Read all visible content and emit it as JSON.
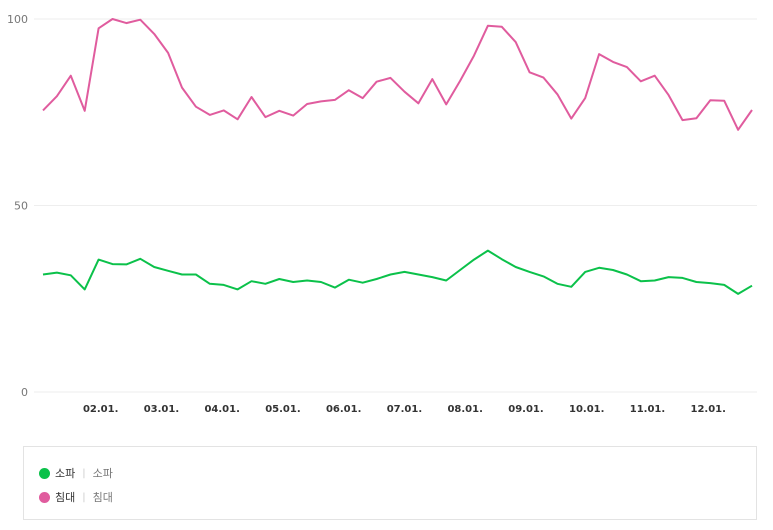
{
  "chart_data": {
    "type": "line",
    "ylim": [
      0,
      100
    ],
    "yticks": [
      0,
      50,
      100
    ],
    "x_tick_labels": [
      "02.01.",
      "03.01.",
      "04.01.",
      "05.01.",
      "06.01.",
      "07.01.",
      "08.01.",
      "09.01.",
      "10.01.",
      "11.01.",
      "12.01."
    ],
    "series": [
      {
        "name": "소파",
        "alias": "소파",
        "color": "#0bc14a",
        "values": [
          31.5,
          32,
          31.3,
          27.5,
          35.5,
          34.3,
          34.2,
          35.7,
          33.5,
          32.5,
          31.5,
          31.5,
          29,
          28.7,
          27.5,
          29.7,
          29,
          30.3,
          29.5,
          29.9,
          29.5,
          28,
          30.1,
          29.3,
          30.3,
          31.5,
          32.2,
          31.5,
          30.8,
          29.9,
          32.7,
          35.5,
          37.9,
          35.6,
          33.5,
          32.2,
          31,
          29,
          28.2,
          32.2,
          33.3,
          32.7,
          31.5,
          29.7,
          29.9,
          30.8,
          30.6,
          29.5,
          29.2,
          28.7,
          26.3,
          28.5
        ]
      },
      {
        "name": "침대",
        "alias": "침대",
        "color": "#e05c9e",
        "values": [
          75.5,
          79.3,
          84.8,
          75.4,
          97.5,
          100,
          98.9,
          99.8,
          96,
          90.9,
          81.6,
          76.5,
          74.3,
          75.5,
          73.1,
          79.1,
          73.7,
          75.4,
          74.1,
          77.2,
          77.9,
          78.3,
          80.9,
          78.8,
          83.2,
          84.2,
          80.5,
          77.4,
          83.9,
          77.1,
          83.4,
          90.2,
          98.2,
          97.9,
          93.8,
          85.7,
          84.3,
          79.8,
          73.3,
          78.8,
          90.6,
          88.5,
          87.1,
          83.3,
          84.8,
          79.6,
          72.9,
          73.4,
          78.2,
          78.1,
          70.3,
          75.6
        ]
      }
    ]
  }
}
